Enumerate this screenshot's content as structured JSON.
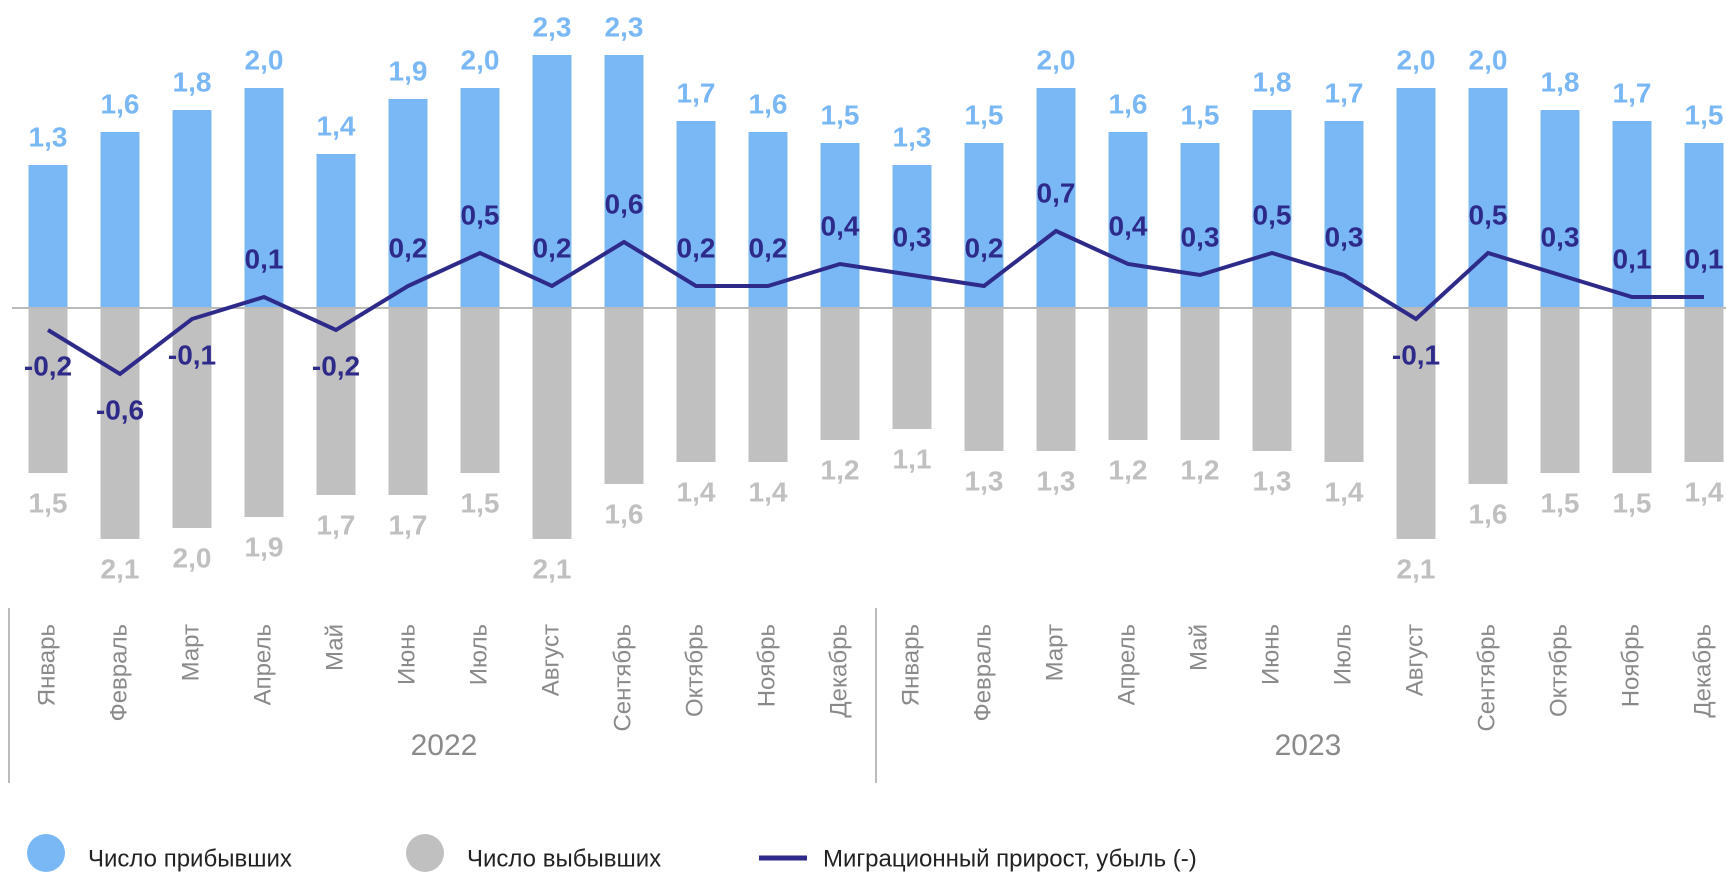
{
  "chart_data": {
    "type": "bar-line",
    "category_groups": [
      {
        "label": "2022",
        "categories": [
          "Январь",
          "Февраль",
          "Март",
          "Апрель",
          "Май",
          "Июнь",
          "Июль",
          "Август",
          "Сентябрь",
          "Октябрь",
          "Ноябрь",
          "Декабрь"
        ]
      },
      {
        "label": "2023",
        "categories": [
          "Январь",
          "Февраль",
          "Март",
          "Апрель",
          "Май",
          "Июнь",
          "Июль",
          "Август",
          "Сентябрь",
          "Октябрь",
          "Ноябрь",
          "Декабрь"
        ]
      }
    ],
    "series": [
      {
        "name": "Число прибывших",
        "type": "bar",
        "color": "#7ab8f5",
        "values": [
          1.3,
          1.6,
          1.8,
          2.0,
          1.4,
          1.9,
          2.0,
          2.3,
          2.3,
          1.7,
          1.6,
          1.5,
          1.3,
          1.5,
          2.0,
          1.6,
          1.5,
          1.8,
          1.7,
          2.0,
          2.0,
          1.8,
          1.7,
          1.5
        ],
        "value_labels": [
          "1,3",
          "1,6",
          "1,8",
          "2,0",
          "1,4",
          "1,9",
          "2,0",
          "2,3",
          "2,3",
          "1,7",
          "1,6",
          "1,5",
          "1,3",
          "1,5",
          "2,0",
          "1,6",
          "1,5",
          "1,8",
          "1,7",
          "2,0",
          "2,0",
          "1,8",
          "1,7",
          "1,5"
        ]
      },
      {
        "name": "Число выбывших",
        "type": "bar",
        "downward": true,
        "color": "#c0c0c0",
        "values": [
          1.5,
          2.1,
          2.0,
          1.9,
          1.7,
          1.7,
          1.5,
          2.1,
          1.6,
          1.4,
          1.4,
          1.2,
          1.1,
          1.3,
          1.3,
          1.2,
          1.2,
          1.3,
          1.4,
          2.1,
          1.6,
          1.5,
          1.5,
          1.4
        ],
        "value_labels": [
          "1,5",
          "2,1",
          "2,0",
          "1,9",
          "1,7",
          "1,7",
          "1,5",
          "2,1",
          "1,6",
          "1,4",
          "1,4",
          "1,2",
          "1,1",
          "1,3",
          "1,3",
          "1,2",
          "1,2",
          "1,3",
          "1,4",
          "2,1",
          "1,6",
          "1,5",
          "1,5",
          "1,4"
        ]
      },
      {
        "name": "Миграционный прирост, убыль (-)",
        "type": "line",
        "color": "#2e2a8a",
        "values": [
          -0.2,
          -0.6,
          -0.1,
          0.1,
          -0.2,
          0.2,
          0.5,
          0.2,
          0.6,
          0.2,
          0.2,
          0.4,
          0.3,
          0.2,
          0.7,
          0.4,
          0.3,
          0.5,
          0.3,
          -0.1,
          0.5,
          0.3,
          0.1,
          0.1
        ],
        "value_labels": [
          "-0,2",
          "-0,6",
          "-0,1",
          "0,1",
          "-0,2",
          "0,2",
          "0,5",
          "0,2",
          "0,6",
          "0,2",
          "0,2",
          "0,4",
          "0,3",
          "0,2",
          "0,7",
          "0,4",
          "0,3",
          "0,5",
          "0,3",
          "-0,1",
          "0,5",
          "0,3",
          "0,1",
          "0,1"
        ]
      }
    ]
  }
}
